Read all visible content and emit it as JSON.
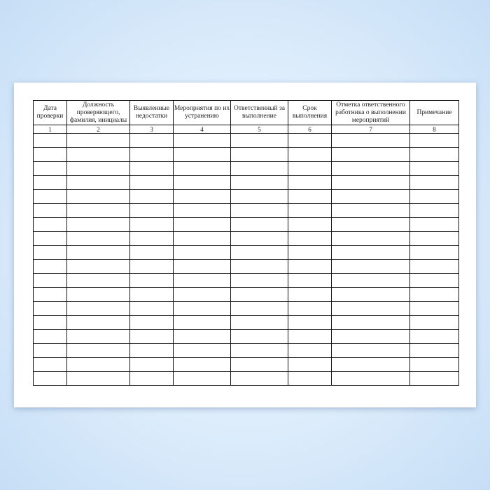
{
  "document": {
    "columns": [
      {
        "header": "Дата проверки",
        "number": "1"
      },
      {
        "header": "Должность проверяющего, фамилия, инициалы",
        "number": "2"
      },
      {
        "header": "Выявленные недостатки",
        "number": "3"
      },
      {
        "header": "Мероприятия по их устранению",
        "number": "4"
      },
      {
        "header": "Ответственный за выполнение",
        "number": "5"
      },
      {
        "header": "Срок выполнения",
        "number": "6"
      },
      {
        "header": "Отметка ответственного работника о выполнении мероприятий",
        "number": "7"
      },
      {
        "header": "Примечание",
        "number": "8"
      }
    ],
    "empty_row_count": 18
  },
  "colors": {
    "background": "#dcecfb",
    "paper": "#ffffff",
    "lines": "#111111"
  }
}
